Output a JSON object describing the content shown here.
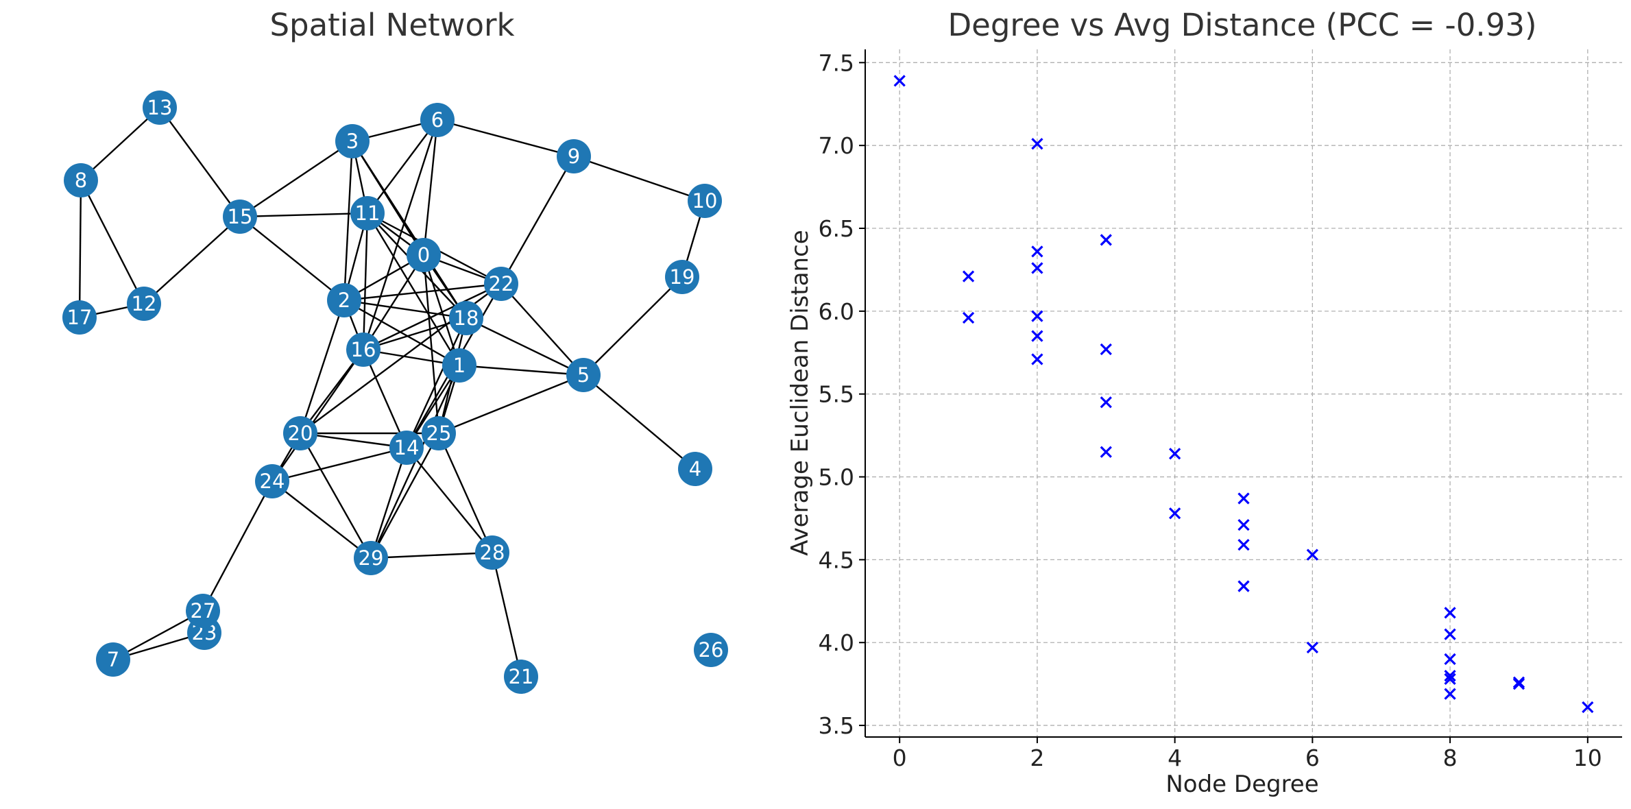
{
  "chart_data": [
    {
      "type": "network",
      "title": "Spatial Network",
      "node_color": "#1f77b4",
      "node_label_color": "#ffffff",
      "edge_color": "#000000",
      "nodes": [
        "0",
        "1",
        "2",
        "3",
        "4",
        "5",
        "6",
        "7",
        "8",
        "9",
        "10",
        "11",
        "12",
        "13",
        "14",
        "15",
        "16",
        "17",
        "18",
        "19",
        "20",
        "21",
        "22",
        "23",
        "24",
        "25",
        "26",
        "27",
        "28",
        "29"
      ],
      "edges": [
        [
          "13",
          "8"
        ],
        [
          "13",
          "15"
        ],
        [
          "8",
          "17"
        ],
        [
          "8",
          "12"
        ],
        [
          "17",
          "12"
        ],
        [
          "12",
          "15"
        ],
        [
          "15",
          "3"
        ],
        [
          "15",
          "11"
        ],
        [
          "15",
          "2"
        ],
        [
          "3",
          "6"
        ],
        [
          "3",
          "11"
        ],
        [
          "3",
          "2"
        ],
        [
          "3",
          "0"
        ],
        [
          "3",
          "18"
        ],
        [
          "6",
          "9"
        ],
        [
          "6",
          "11"
        ],
        [
          "6",
          "0"
        ],
        [
          "6",
          "16"
        ],
        [
          "9",
          "10"
        ],
        [
          "9",
          "22"
        ],
        [
          "10",
          "19"
        ],
        [
          "19",
          "5"
        ],
        [
          "4",
          "5"
        ],
        [
          "11",
          "0"
        ],
        [
          "11",
          "2"
        ],
        [
          "11",
          "16"
        ],
        [
          "11",
          "22"
        ],
        [
          "11",
          "18"
        ],
        [
          "11",
          "1"
        ],
        [
          "0",
          "2"
        ],
        [
          "0",
          "22"
        ],
        [
          "0",
          "16"
        ],
        [
          "0",
          "18"
        ],
        [
          "0",
          "1"
        ],
        [
          "0",
          "25"
        ],
        [
          "22",
          "2"
        ],
        [
          "22",
          "16"
        ],
        [
          "22",
          "5"
        ],
        [
          "22",
          "14"
        ],
        [
          "22",
          "20"
        ],
        [
          "2",
          "18"
        ],
        [
          "2",
          "1"
        ],
        [
          "2",
          "16"
        ],
        [
          "2",
          "20"
        ],
        [
          "18",
          "16"
        ],
        [
          "18",
          "5"
        ],
        [
          "18",
          "14"
        ],
        [
          "18",
          "25"
        ],
        [
          "16",
          "1"
        ],
        [
          "16",
          "14"
        ],
        [
          "16",
          "20"
        ],
        [
          "16",
          "24"
        ],
        [
          "1",
          "5"
        ],
        [
          "1",
          "14"
        ],
        [
          "1",
          "25"
        ],
        [
          "1",
          "29"
        ],
        [
          "5",
          "25"
        ],
        [
          "20",
          "14"
        ],
        [
          "20",
          "25"
        ],
        [
          "20",
          "29"
        ],
        [
          "20",
          "24"
        ],
        [
          "14",
          "29"
        ],
        [
          "14",
          "24"
        ],
        [
          "14",
          "28"
        ],
        [
          "25",
          "29"
        ],
        [
          "25",
          "28"
        ],
        [
          "24",
          "29"
        ],
        [
          "24",
          "27"
        ],
        [
          "28",
          "29"
        ],
        [
          "28",
          "21"
        ],
        [
          "27",
          "7"
        ],
        [
          "23",
          "7"
        ]
      ]
    },
    {
      "type": "scatter",
      "title": "Degree vs Avg Distance (PCC = -0.93)",
      "xlabel": "Node Degree",
      "ylabel": "Average Euclidean Distance",
      "marker": "x",
      "color": "#0000ff",
      "grid": true,
      "xlim": [
        -0.5,
        10.5
      ],
      "ylim": [
        3.43,
        7.58
      ],
      "xticks": [
        "0",
        "2",
        "4",
        "6",
        "8",
        "10"
      ],
      "yticks": [
        "3.5",
        "4.0",
        "4.5",
        "5.0",
        "5.5",
        "6.0",
        "6.5",
        "7.0",
        "7.5"
      ],
      "points": [
        [
          0,
          7.39
        ],
        [
          1,
          6.21
        ],
        [
          1,
          5.96
        ],
        [
          2,
          7.01
        ],
        [
          2,
          6.36
        ],
        [
          2,
          6.26
        ],
        [
          2,
          5.97
        ],
        [
          2,
          5.85
        ],
        [
          2,
          5.71
        ],
        [
          3,
          6.43
        ],
        [
          3,
          5.77
        ],
        [
          3,
          5.45
        ],
        [
          3,
          5.15
        ],
        [
          4,
          5.14
        ],
        [
          4,
          4.78
        ],
        [
          5,
          4.87
        ],
        [
          5,
          4.71
        ],
        [
          5,
          4.59
        ],
        [
          5,
          4.34
        ],
        [
          6,
          4.53
        ],
        [
          6,
          3.97
        ],
        [
          8,
          4.18
        ],
        [
          8,
          4.05
        ],
        [
          8,
          3.9
        ],
        [
          8,
          3.8
        ],
        [
          8,
          3.78
        ],
        [
          8,
          3.69
        ],
        [
          9,
          3.76
        ],
        [
          9,
          3.75
        ],
        [
          10,
          3.61
        ]
      ]
    }
  ]
}
